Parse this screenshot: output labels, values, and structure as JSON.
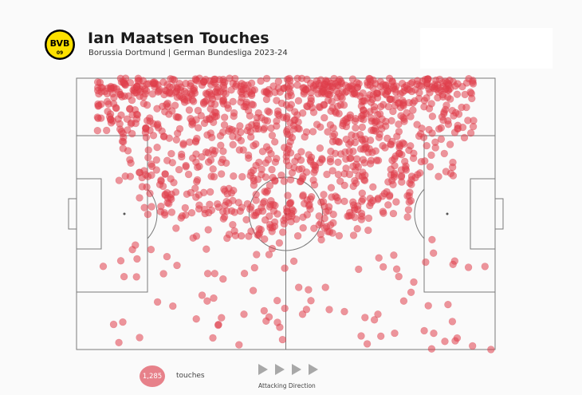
{
  "header": {
    "title": "Ian Maatsen Touches",
    "subtitle": "Borussia Dortmund | German Bundesliga 2023-24",
    "logo": {
      "text_top": "BVB",
      "text_bottom": "09",
      "fill": "#fde100",
      "ring": "#000000"
    }
  },
  "footer": {
    "count": "1,285",
    "count_label": "touches",
    "direction_label": "Attacking Direction"
  },
  "colors": {
    "touch": "#e0404c",
    "line": "#7a7a7a",
    "badge": "#e7818a"
  },
  "chart_data": {
    "type": "scatter",
    "title": "Ian Maatsen Touches",
    "x_range": [
      0,
      100
    ],
    "y_range": [
      0,
      100
    ],
    "total_touches": 1285,
    "density": {
      "note_none": "",
      "bands": [
        {
          "x": [
            5,
            95
          ],
          "y": [
            94,
            100
          ],
          "weight": 26
        },
        {
          "x": [
            5,
            95
          ],
          "y": [
            78,
            94
          ],
          "weight": 30
        },
        {
          "x": [
            10,
            90
          ],
          "y": [
            62,
            78
          ],
          "weight": 20
        },
        {
          "x": [
            15,
            80
          ],
          "y": [
            48,
            62
          ],
          "weight": 12
        },
        {
          "x": [
            35,
            70
          ],
          "y": [
            40,
            55
          ],
          "weight": 6
        },
        {
          "x": [
            5,
            98
          ],
          "y": [
            0,
            45
          ],
          "weight": 6
        }
      ]
    },
    "sample_points": [
      [
        30,
        20
      ],
      [
        33,
        28
      ],
      [
        38,
        42
      ],
      [
        46,
        35
      ],
      [
        40,
        13
      ],
      [
        48,
        10
      ],
      [
        56,
        18
      ],
      [
        64,
        14
      ],
      [
        72,
        13
      ],
      [
        76,
        6
      ],
      [
        88,
        3
      ],
      [
        99,
        0
      ],
      [
        46,
        12
      ],
      [
        23,
        16
      ],
      [
        24,
        31
      ],
      [
        31,
        37
      ],
      [
        43,
        35
      ],
      [
        68,
        5
      ],
      [
        54,
        13
      ],
      [
        35,
        26
      ]
    ]
  }
}
